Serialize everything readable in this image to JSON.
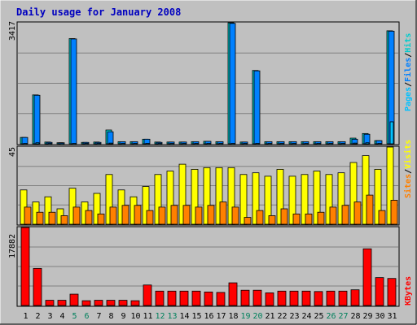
{
  "chart_data": {
    "type": "bar",
    "title": "Daily usage for January 2008",
    "days": [
      "1",
      "2",
      "3",
      "4",
      "5",
      "6",
      "7",
      "8",
      "9",
      "10",
      "11",
      "12",
      "13",
      "14",
      "15",
      "16",
      "17",
      "18",
      "19",
      "20",
      "21",
      "22",
      "23",
      "24",
      "25",
      "26",
      "27",
      "28",
      "29",
      "30",
      "31"
    ],
    "weekend_days": [
      "5",
      "6",
      "12",
      "13",
      "19",
      "20",
      "26",
      "27"
    ],
    "panels": {
      "hits_files_pages": {
        "max_label": "3417",
        "ymax": 3417,
        "legend": [
          "Pages",
          "/",
          "Files",
          "/",
          "Hits"
        ],
        "series": [
          {
            "name": "Hits",
            "values": [
              180,
              1380,
              50,
              30,
              2970,
              40,
              50,
              390,
              60,
              60,
              130,
              50,
              50,
              50,
              60,
              70,
              60,
              3417,
              50,
              2070,
              60,
              60,
              60,
              60,
              60,
              60,
              60,
              160,
              290,
              90,
              3190
            ]
          },
          {
            "name": "Files",
            "values": [
              180,
              1370,
              40,
              30,
              2960,
              40,
              40,
              340,
              60,
              60,
              130,
              40,
              50,
              50,
              60,
              70,
              60,
              3400,
              50,
              2060,
              60,
              60,
              60,
              60,
              60,
              60,
              60,
              130,
              270,
              90,
              3180
            ]
          },
          {
            "name": "Pages",
            "values": [
              10,
              30,
              10,
              5,
              10,
              10,
              10,
              20,
              10,
              10,
              10,
              10,
              10,
              10,
              10,
              10,
              10,
              10,
              10,
              10,
              10,
              10,
              10,
              10,
              10,
              10,
              10,
              20,
              30,
              10,
              620
            ]
          }
        ]
      },
      "visits_sites": {
        "max_label": "45",
        "ymax": 45,
        "legend": [
          "Sites",
          "/",
          "Visits"
        ],
        "series": [
          {
            "name": "Visits",
            "values": [
              20,
              13,
              16,
              9,
              21,
              13,
              18,
              29,
              20,
              16,
              22,
              29,
              31,
              35,
              32,
              33,
              33,
              33,
              29,
              30,
              28,
              32,
              28,
              29,
              31,
              29,
              30,
              36,
              40,
              32,
              45
            ]
          },
          {
            "name": "Sites",
            "values": [
              10,
              7,
              7,
              5,
              10,
              8,
              6,
              10,
              11,
              11,
              8,
              10,
              11,
              11,
              10,
              11,
              13,
              10,
              4,
              8,
              5,
              9,
              6,
              6,
              7,
              10,
              11,
              13,
              17,
              8,
              14
            ]
          }
        ]
      },
      "kbytes": {
        "max_label": "17882",
        "ymax": 17882,
        "legend": [
          "KBytes"
        ],
        "series": [
          {
            "name": "KBytes",
            "values": [
              17882,
              8500,
              1200,
              1200,
              2600,
              1100,
              1200,
              1200,
              1200,
              1100,
              4700,
              3300,
              3300,
              3300,
              3300,
              3100,
              3000,
              5200,
              3500,
              3500,
              2900,
              3300,
              3300,
              3300,
              3200,
              3300,
              3300,
              3600,
              13000,
              6400,
              6200
            ]
          }
        ]
      }
    },
    "colors": {
      "background": "#c0c0c0",
      "plot_bg": "#c0c0c0",
      "grid": "#808080",
      "title": "#0000c0",
      "hits": "#00cccc",
      "files": "#0080ff",
      "pages": "#00c0ff",
      "visits": "#ffff00",
      "sites": "#ff8000",
      "kbytes": "#ff0000",
      "weekend_label": "#00805c",
      "weekday_label": "#000000"
    }
  }
}
